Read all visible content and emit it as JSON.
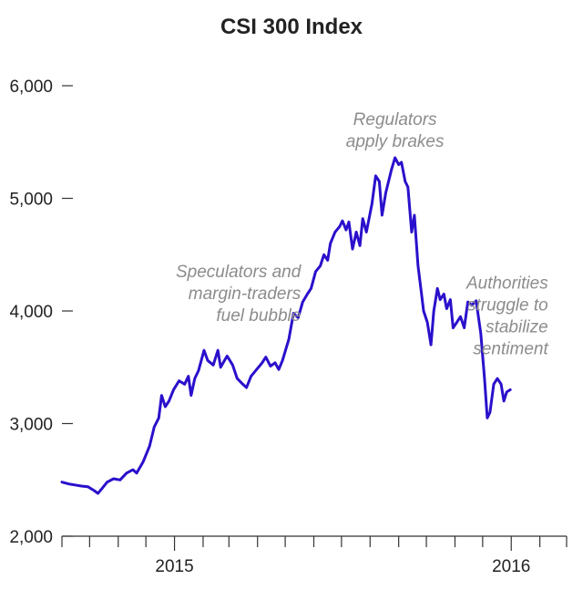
{
  "chart_data": {
    "type": "line",
    "title": "CSI 300 Index",
    "xlabel": "",
    "ylabel": "",
    "x_range": [
      "2014-09-01",
      "2016-03-01"
    ],
    "ylim": [
      2000,
      6000
    ],
    "yticks": [
      2000,
      3000,
      4000,
      5000,
      6000
    ],
    "ytick_labels": [
      "2,000",
      "3,000",
      "4,000",
      "5,000",
      "6,000"
    ],
    "xtick_labels": [
      {
        "date": "2015-01-01",
        "label": "2015"
      },
      {
        "date": "2016-01-01",
        "label": "2016"
      }
    ],
    "grid": false,
    "line_color": "#2a10cc",
    "series": [
      {
        "values": [
          [
            "2014-09-01",
            2480
          ],
          [
            "2014-09-08",
            2465
          ],
          [
            "2014-09-15",
            2455
          ],
          [
            "2014-09-22",
            2445
          ],
          [
            "2014-09-29",
            2440
          ],
          [
            "2014-10-06",
            2405
          ],
          [
            "2014-10-10",
            2380
          ],
          [
            "2014-10-15",
            2430
          ],
          [
            "2014-10-20",
            2480
          ],
          [
            "2014-10-27",
            2510
          ],
          [
            "2014-11-03",
            2500
          ],
          [
            "2014-11-10",
            2560
          ],
          [
            "2014-11-17",
            2590
          ],
          [
            "2014-11-21",
            2560
          ],
          [
            "2014-11-28",
            2660
          ],
          [
            "2014-12-05",
            2800
          ],
          [
            "2014-12-10",
            2970
          ],
          [
            "2014-12-15",
            3050
          ],
          [
            "2014-12-18",
            3250
          ],
          [
            "2014-12-22",
            3150
          ],
          [
            "2014-12-26",
            3200
          ],
          [
            "2014-12-31",
            3300
          ],
          [
            "2015-01-06",
            3380
          ],
          [
            "2015-01-12",
            3350
          ],
          [
            "2015-01-16",
            3420
          ],
          [
            "2015-01-19",
            3250
          ],
          [
            "2015-01-23",
            3400
          ],
          [
            "2015-01-27",
            3470
          ],
          [
            "2015-02-02",
            3650
          ],
          [
            "2015-02-06",
            3560
          ],
          [
            "2015-02-12",
            3520
          ],
          [
            "2015-02-17",
            3650
          ],
          [
            "2015-02-20",
            3500
          ],
          [
            "2015-02-27",
            3600
          ],
          [
            "2015-03-05",
            3520
          ],
          [
            "2015-03-10",
            3400
          ],
          [
            "2015-03-16",
            3350
          ],
          [
            "2015-03-20",
            3320
          ],
          [
            "2015-03-25",
            3420
          ],
          [
            "2015-03-31",
            3480
          ],
          [
            "2015-04-06",
            3540
          ],
          [
            "2015-04-10",
            3590
          ],
          [
            "2015-04-15",
            3510
          ],
          [
            "2015-04-20",
            3540
          ],
          [
            "2015-04-24",
            3480
          ],
          [
            "2015-04-28",
            3560
          ],
          [
            "2015-05-05",
            3750
          ],
          [
            "2015-05-10",
            3980
          ],
          [
            "2015-05-15",
            3940
          ],
          [
            "2015-05-20",
            4080
          ],
          [
            "2015-05-25",
            4150
          ],
          [
            "2015-05-29",
            4200
          ],
          [
            "2015-06-03",
            4350
          ],
          [
            "2015-06-08",
            4400
          ],
          [
            "2015-06-12",
            4500
          ],
          [
            "2015-06-16",
            4450
          ],
          [
            "2015-06-19",
            4600
          ],
          [
            "2015-06-24",
            4700
          ],
          [
            "2015-06-29",
            4750
          ],
          [
            "2015-07-02",
            4800
          ],
          [
            "2015-07-06",
            4720
          ],
          [
            "2015-07-09",
            4790
          ],
          [
            "2015-07-13",
            4550
          ],
          [
            "2015-07-17",
            4700
          ],
          [
            "2015-07-21",
            4580
          ],
          [
            "2015-07-24",
            4820
          ],
          [
            "2015-07-28",
            4700
          ],
          [
            "2015-08-03",
            4950
          ],
          [
            "2015-08-07",
            5200
          ],
          [
            "2015-08-11",
            5150
          ],
          [
            "2015-08-14",
            4850
          ],
          [
            "2015-08-18",
            5050
          ],
          [
            "2015-08-24",
            5250
          ],
          [
            "2015-08-28",
            5360
          ],
          [
            "2015-09-01",
            5300
          ],
          [
            "2015-09-04",
            5320
          ],
          [
            "2015-09-08",
            5150
          ],
          [
            "2015-09-11",
            5100
          ],
          [
            "2015-09-15",
            4700
          ],
          [
            "2015-09-18",
            4850
          ],
          [
            "2015-09-22",
            4400
          ],
          [
            "2015-09-25",
            4200
          ],
          [
            "2015-09-28",
            4000
          ],
          [
            "2015-10-02",
            3900
          ],
          [
            "2015-10-06",
            3700
          ],
          [
            "2015-10-09",
            4000
          ],
          [
            "2015-10-13",
            4200
          ],
          [
            "2015-10-16",
            4100
          ],
          [
            "2015-10-20",
            4150
          ],
          [
            "2015-10-23",
            4020
          ],
          [
            "2015-10-27",
            4100
          ],
          [
            "2015-10-30",
            3850
          ],
          [
            "2015-11-03",
            3900
          ],
          [
            "2015-11-07",
            3950
          ],
          [
            "2015-11-11",
            3850
          ],
          [
            "2015-11-15",
            4080
          ],
          [
            "2015-11-19",
            4050
          ],
          [
            "2015-11-24",
            4090
          ],
          [
            "2015-11-29",
            3800
          ],
          [
            "2015-12-03",
            3400
          ],
          [
            "2015-12-06",
            3050
          ],
          [
            "2015-12-09",
            3100
          ],
          [
            "2015-12-13",
            3350
          ],
          [
            "2015-12-17",
            3400
          ],
          [
            "2015-12-21",
            3350
          ],
          [
            "2015-12-24",
            3200
          ],
          [
            "2015-12-27",
            3280
          ],
          [
            "2015-12-31",
            3300
          ]
        ]
      }
    ],
    "annotations": [
      {
        "lines": [
          "Speculators and",
          "margin-traders",
          "fuel bubble"
        ],
        "align": "right",
        "anchor_date": "2015-05-18",
        "anchor_value": 4300
      },
      {
        "lines": [
          "Regulators",
          "apply brakes"
        ],
        "align": "middle",
        "anchor_date": "2015-08-28",
        "anchor_value": 5650
      },
      {
        "lines": [
          "Authorities",
          "struggle to",
          "stabilize",
          "sentiment"
        ],
        "align": "right",
        "anchor_date": "2016-02-10",
        "anchor_value": 4200
      }
    ]
  }
}
